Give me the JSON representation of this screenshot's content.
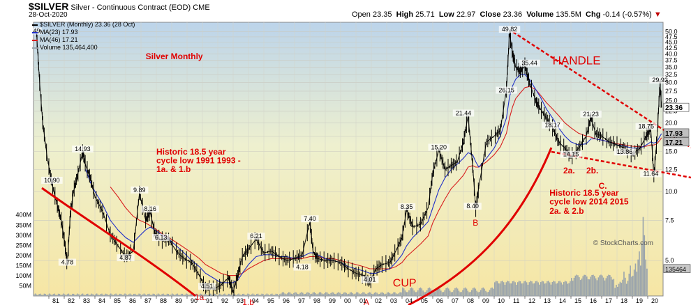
{
  "header": {
    "symbol": "$SILVER",
    "name": "Silver - Continuous Contract (EOD)",
    "exchange": "CME",
    "date": "28-Oct-2020",
    "open_label": "Open",
    "open": "23.35",
    "high_label": "High",
    "high": "25.71",
    "low_label": "Low",
    "low": "22.97",
    "close_label": "Close",
    "close": "23.36",
    "volume_label": "Volume",
    "volume": "135.5M",
    "chg_label": "Chg",
    "chg": "-0.14 (-0.57%)"
  },
  "legend": {
    "main": "$SILVER (Monthly) 23.36 (28 Oct)",
    "ma23": "MA(23) 17.93",
    "ma46": "MA(46) 17.21",
    "volume": "Volume 135,464,400"
  },
  "watermark": "© StockCharts.com",
  "colors": {
    "price": "#000000",
    "ma23": "#1f2fc8",
    "ma46": "#d81e1e",
    "volume": "#9aa4ac",
    "annotation": "#e00000",
    "price_tag": "#c0c0c0"
  },
  "chart_data": {
    "type": "line",
    "scale": "log",
    "ylim": [
      3.5,
      55
    ],
    "y_ticks": [
      "5.0",
      "7.5",
      "10.0",
      "12.5",
      "15.0",
      "17.5",
      "20.0",
      "22.5",
      "25.0",
      "27.5",
      "30.0",
      "32.5",
      "35.0",
      "37.5",
      "40.0",
      "42.5",
      "45.0",
      "47.5",
      "50.0"
    ],
    "x_ticks": [
      "81",
      "82",
      "83",
      "84",
      "85",
      "86",
      "87",
      "88",
      "89",
      "90",
      "91",
      "92",
      "93",
      "94",
      "95",
      "96",
      "97",
      "98",
      "99",
      "00",
      "01",
      "02",
      "03",
      "04",
      "05",
      "06",
      "07",
      "08",
      "09",
      "10",
      "11",
      "12",
      "13",
      "14",
      "15",
      "16",
      "17",
      "18",
      "19",
      "20"
    ],
    "vol_ticks": [
      "400M",
      "350M",
      "300M",
      "250M",
      "200M",
      "150M",
      "100M",
      "50M"
    ],
    "price_x": [
      80.2,
      80.4,
      80.6,
      80.9,
      81.2,
      81.5,
      81.8,
      82.0,
      82.2,
      82.4,
      82.6,
      82.9,
      83.2,
      83.4,
      83.7,
      84.0,
      84.5,
      85.0,
      85.5,
      86.0,
      86.5,
      86.9,
      87.3,
      87.6,
      87.9,
      88.3,
      88.8,
      89.3,
      89.8,
      90.3,
      90.8,
      91.2,
      91.7,
      92.2,
      92.7,
      93.0,
      93.3,
      93.6,
      94.0,
      94.5,
      95.0,
      95.5,
      96.0,
      96.5,
      97.0,
      97.5,
      98.0,
      98.2,
      98.5,
      99.0,
      99.5,
      100.0,
      100.5,
      101.0,
      101.5,
      101.9,
      102.3,
      102.7,
      103.2,
      103.6,
      104.0,
      104.3,
      104.7,
      105.2,
      105.7,
      106.0,
      106.4,
      106.8,
      107.2,
      107.6,
      108.0,
      108.3,
      108.6,
      108.8,
      109.0,
      109.5,
      110.0,
      110.4,
      110.8,
      111.0,
      111.2,
      111.4,
      111.7,
      112.0,
      112.3,
      112.7,
      113.0,
      113.4,
      113.8,
      114.2,
      114.6,
      115.0,
      115.5,
      116.0,
      116.3,
      116.6,
      117.0,
      117.5,
      118.0,
      118.5,
      119.0,
      119.5,
      119.9,
      120.2,
      120.4,
      120.6,
      120.8,
      120.9
    ],
    "price_y": [
      49,
      30,
      20,
      14,
      10.9,
      9,
      7.5,
      6.2,
      4.78,
      8,
      10,
      12,
      14.93,
      13,
      11.5,
      9.5,
      8.2,
      6.5,
      5.8,
      5.2,
      5.5,
      9.89,
      7.5,
      8.16,
      6.6,
      6.13,
      6.2,
      5.5,
      5.1,
      4.9,
      4.3,
      3.8,
      3.75,
      3.9,
      4.2,
      3.65,
      4.3,
      5.2,
      5.6,
      6.21,
      5.4,
      5.5,
      5.2,
      5.0,
      5.1,
      5.3,
      7.4,
      5.5,
      5.1,
      5.0,
      5.0,
      4.9,
      4.6,
      4.4,
      4.3,
      4.01,
      4.6,
      4.8,
      4.9,
      5.5,
      6.3,
      8.35,
      7.0,
      7.2,
      8.5,
      12.0,
      15.2,
      12.5,
      13.0,
      13.5,
      16.5,
      21.44,
      13.0,
      8.4,
      10.5,
      16.5,
      17.5,
      18.5,
      28.0,
      49.82,
      40.0,
      35.0,
      33.5,
      35.44,
      30.0,
      25.0,
      23.0,
      21.0,
      19.0,
      16.5,
      15.5,
      14.15,
      15.5,
      17.5,
      21.23,
      18.0,
      17.5,
      16.5,
      16.0,
      15.5,
      14.5,
      15.5,
      17.5,
      18.75,
      11.64,
      17.0,
      29.92,
      23.36
    ],
    "ma23_y": [
      null,
      null,
      null,
      null,
      null,
      null,
      null,
      null,
      null,
      null,
      null,
      null,
      null,
      12.5,
      11,
      10,
      8.8,
      7.5,
      6.8,
      6.3,
      6.0,
      6.4,
      6.8,
      7.0,
      6.8,
      6.5,
      6.2,
      5.8,
      5.4,
      5.0,
      4.7,
      4.4,
      4.2,
      4.0,
      4.0,
      4.0,
      4.1,
      4.4,
      4.8,
      5.2,
      5.3,
      5.3,
      5.2,
      5.2,
      5.1,
      5.2,
      5.4,
      5.4,
      5.3,
      5.1,
      5.0,
      4.9,
      4.7,
      4.6,
      4.5,
      4.4,
      4.4,
      4.5,
      4.6,
      4.9,
      5.3,
      5.8,
      6.3,
      6.8,
      7.4,
      8.5,
      10.2,
      11.5,
      12.5,
      13.2,
      14.0,
      14.8,
      14.5,
      13.5,
      12.8,
      14.0,
      15.5,
      17.5,
      21.0,
      26.0,
      29.0,
      31.0,
      32.5,
      32.5,
      31.0,
      28.0,
      26.0,
      23.0,
      21.0,
      19.0,
      17.5,
      16.5,
      16.0,
      16.2,
      17.0,
      17.0,
      16.8,
      16.5,
      16.0,
      15.8,
      15.5,
      15.5,
      16.0,
      16.5,
      16.3,
      16.5,
      17.5,
      17.93
    ],
    "ma46_y": [
      null,
      null,
      null,
      null,
      null,
      null,
      null,
      null,
      null,
      null,
      null,
      null,
      null,
      null,
      null,
      null,
      null,
      10.5,
      9.5,
      8.5,
      7.8,
      7.5,
      7.3,
      7.1,
      6.9,
      6.6,
      6.3,
      6.0,
      5.7,
      5.4,
      5.1,
      4.8,
      4.6,
      4.4,
      4.3,
      4.3,
      4.3,
      4.4,
      4.6,
      4.8,
      5.0,
      5.1,
      5.1,
      5.1,
      5.1,
      5.1,
      5.2,
      5.2,
      5.2,
      5.1,
      5.1,
      5.0,
      4.9,
      4.8,
      4.7,
      4.6,
      4.6,
      4.6,
      4.6,
      4.7,
      4.9,
      5.2,
      5.5,
      5.9,
      6.4,
      7.3,
      8.3,
      9.3,
      10.3,
      11.0,
      11.8,
      12.8,
      13.0,
      12.8,
      12.8,
      13.5,
      14.5,
      15.7,
      18.0,
      21.0,
      23.5,
      25.5,
      27.0,
      28.5,
      28.8,
      28.0,
      26.5,
      24.5,
      23.0,
      21.5,
      20.0,
      19.0,
      18.0,
      17.5,
      17.3,
      17.0,
      16.8,
      16.5,
      16.2,
      16.0,
      15.8,
      15.7,
      15.8,
      16.0,
      16.0,
      16.2,
      16.8,
      17.21
    ],
    "peak_labels": [
      {
        "label": "49",
        "x": 80.2,
        "y": 49
      },
      {
        "label": "10.90",
        "x": 81.2,
        "y": 10.9
      },
      {
        "label": "4.78",
        "x": 82.2,
        "y": 4.78
      },
      {
        "label": "14.93",
        "x": 83.2,
        "y": 14.93
      },
      {
        "label": "4.87",
        "x": 86.0,
        "y": 5.0
      },
      {
        "label": "9.89",
        "x": 86.9,
        "y": 9.89
      },
      {
        "label": "8.16",
        "x": 87.6,
        "y": 8.16
      },
      {
        "label": "6.13",
        "x": 88.3,
        "y": 6.13
      },
      {
        "label": "4.51",
        "x": 91.3,
        "y": 3.75
      },
      {
        "label": "6.21",
        "x": 94.5,
        "y": 6.21
      },
      {
        "label": "4.18",
        "x": 97.5,
        "y": 4.55
      },
      {
        "label": "7.40",
        "x": 98.0,
        "y": 7.4
      },
      {
        "label": "4.01",
        "x": 101.9,
        "y": 4.01
      },
      {
        "label": "8.35",
        "x": 104.3,
        "y": 8.35
      },
      {
        "label": "15.20",
        "x": 106.4,
        "y": 15.2
      },
      {
        "label": "21.44",
        "x": 108.0,
        "y": 21.44
      },
      {
        "label": "8.40",
        "x": 108.6,
        "y": 8.4
      },
      {
        "label": "49.82",
        "x": 111.0,
        "y": 49.82
      },
      {
        "label": "26.15",
        "x": 110.8,
        "y": 27
      },
      {
        "label": "35.44",
        "x": 112.3,
        "y": 35.44
      },
      {
        "label": "18.17",
        "x": 113.8,
        "y": 19.0
      },
      {
        "label": "14.15",
        "x": 115.0,
        "y": 14.15
      },
      {
        "label": "21.23",
        "x": 116.3,
        "y": 21.23
      },
      {
        "label": "13.86",
        "x": 118.5,
        "y": 14.5
      },
      {
        "label": "18.75",
        "x": 119.9,
        "y": 18.75
      },
      {
        "label": "11.64",
        "x": 120.2,
        "y": 11.64
      },
      {
        "label": "29.92",
        "x": 120.8,
        "y": 29.92
      }
    ],
    "annotations": [
      {
        "text": "Silver Monthly",
        "x": 87.3,
        "y": 38,
        "bold": true
      },
      {
        "text": "HANDLE",
        "x": 113.8,
        "y": 36,
        "bold": false,
        "size": 17
      },
      {
        "text": "Historic 18.5 year",
        "x": 88.0,
        "y": 14.5,
        "bold": true
      },
      {
        "text": "cycle low 1991 1993 -",
        "x": 88.0,
        "y": 13.3,
        "bold": true
      },
      {
        "text": "1a. & 1.b",
        "x": 88.0,
        "y": 12.2,
        "bold": true
      },
      {
        "text": "Historic 18.5 year",
        "x": 113.6,
        "y": 9.6,
        "bold": true
      },
      {
        "text": "cycle low 2014 2015",
        "x": 113.6,
        "y": 8.8,
        "bold": true
      },
      {
        "text": "2a. & 2.b",
        "x": 113.6,
        "y": 8.0,
        "bold": true
      },
      {
        "text": "CUP",
        "x": 103.4,
        "y": 3.85,
        "bold": false,
        "size": 16
      },
      {
        "text": "1a.",
        "x": 90.5,
        "y": 3.35,
        "bold": false
      },
      {
        "text": "1.b",
        "x": 93.6,
        "y": 3.2,
        "bold": false
      },
      {
        "text": "A",
        "x": 101.5,
        "y": 3.2,
        "bold": false
      },
      {
        "text": "B",
        "x": 108.6,
        "y": 7.1,
        "bold": false
      },
      {
        "text": "2a.",
        "x": 114.5,
        "y": 12.0,
        "bold": true
      },
      {
        "text": "2b.",
        "x": 116.0,
        "y": 12.0,
        "bold": true
      },
      {
        "text": "C.",
        "x": 116.8,
        "y": 10.3,
        "bold": true
      }
    ],
    "price_tags": [
      {
        "label": "23.36",
        "y": 23.36
      },
      {
        "label": "17.93",
        "y": 17.93
      },
      {
        "label": "17.21",
        "y": 17.21
      }
    ],
    "volume_tag": "135464",
    "volume_max_m": 430,
    "volume_recent_m": [
      40,
      55,
      45,
      60,
      70,
      65,
      80,
      120,
      90,
      60,
      75,
      110,
      150,
      95,
      100,
      130,
      160,
      120,
      180,
      220,
      150,
      260,
      390,
      300,
      180,
      135
    ]
  }
}
